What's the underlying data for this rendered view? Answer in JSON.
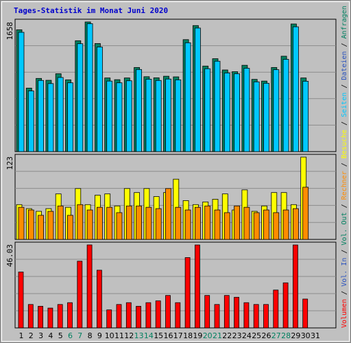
{
  "chart_data": {
    "type": "bar",
    "title": "Tages-Statistik im Monat Juni 2020",
    "x": [
      "1",
      "2",
      "3",
      "4",
      "5",
      "6",
      "7",
      "8",
      "9",
      "10",
      "11",
      "12",
      "13",
      "14",
      "15",
      "16",
      "17",
      "18",
      "19",
      "20",
      "21",
      "22",
      "23",
      "24",
      "25",
      "26",
      "27",
      "28",
      "29",
      "30",
      "31"
    ],
    "weekend_days": [
      "6",
      "7",
      "13",
      "14",
      "20",
      "21",
      "27",
      "28"
    ],
    "panels": [
      {
        "name": "top",
        "ymax_label": "1658",
        "ymax": 1658,
        "series": [
          {
            "name": "Anfragen",
            "color": "#008060",
            "values": [
              1558,
              812,
              936,
              912,
              996,
              918,
              1418,
              1658,
              1382,
              942,
              920,
              942,
              1076,
              958,
              944,
              964,
              956,
              1432,
              1612,
              1094,
              1188,
              1044,
              1022,
              1104,
              924,
              902,
              1076,
              1220,
              1632,
              942,
              null
            ]
          },
          {
            "name": "Dateien",
            "color": "#00c8ff",
            "values": [
              1526,
              776,
              910,
              870,
              948,
              880,
              1380,
              1636,
              1338,
              902,
              880,
              906,
              1050,
              926,
              910,
              928,
              918,
              1392,
              1580,
              1060,
              1156,
              1006,
              996,
              1066,
              892,
              874,
              1048,
              1180,
              1596,
              900,
              null
            ]
          }
        ]
      },
      {
        "name": "middle",
        "ymax_label": "123",
        "ymax": 123,
        "series": [
          {
            "name": "Seiten",
            "color": "#ffff00",
            "values": [
              52,
              46,
              42,
              46,
              68,
              48,
              76,
              52,
              66,
              68,
              50,
              76,
              70,
              76,
              64,
              70,
              90,
              58,
              52,
              56,
              60,
              68,
              44,
              74,
              42,
              50,
              70,
              70,
              52,
              123,
              null
            ]
          },
          {
            "name": "Besuche",
            "color": "#ff8c00",
            "values": [
              48,
              44,
              36,
              42,
              50,
              36,
              52,
              44,
              48,
              48,
              40,
              50,
              50,
              48,
              46,
              76,
              48,
              44,
              48,
              50,
              44,
              40,
              50,
              48,
              40,
              44,
              40,
              44,
              46,
              78,
              null
            ]
          }
        ]
      },
      {
        "name": "bottom",
        "ymax_label": "46.03",
        "ymax": 46.03,
        "series": [
          {
            "name": "Volumen",
            "color": "#ff0000",
            "values": [
              31,
              13,
              12,
              11,
              13,
              14,
              37,
              46.03,
              32,
              10,
              13,
              14,
              12,
              14,
              15,
              18,
              14,
              39,
              46,
              18,
              13,
              18,
              17,
              14,
              13,
              13,
              21,
              25,
              46,
              16,
              null
            ]
          }
        ]
      }
    ],
    "legend_vertical": [
      {
        "text": "Volumen",
        "color": "#ff0000"
      },
      {
        "text": "Vol. In",
        "color": "#2a52be"
      },
      {
        "text": "Vol. Out",
        "color": "#008060"
      },
      {
        "text": "Rechner",
        "color": "#ff8c00"
      },
      {
        "text": "Besuche",
        "color": "#ffff00"
      },
      {
        "text": "Seiten",
        "color": "#00c8ff"
      },
      {
        "text": "Dateien",
        "color": "#2a52be"
      },
      {
        "text": "Anfragen",
        "color": "#008060"
      }
    ],
    "colors": {
      "background": "#c0c0c0",
      "title": "#0000cc",
      "weekday_label": "#000000",
      "weekend_label": "#008060",
      "gridline": "#8c8c8c",
      "separator": "#000000"
    }
  }
}
